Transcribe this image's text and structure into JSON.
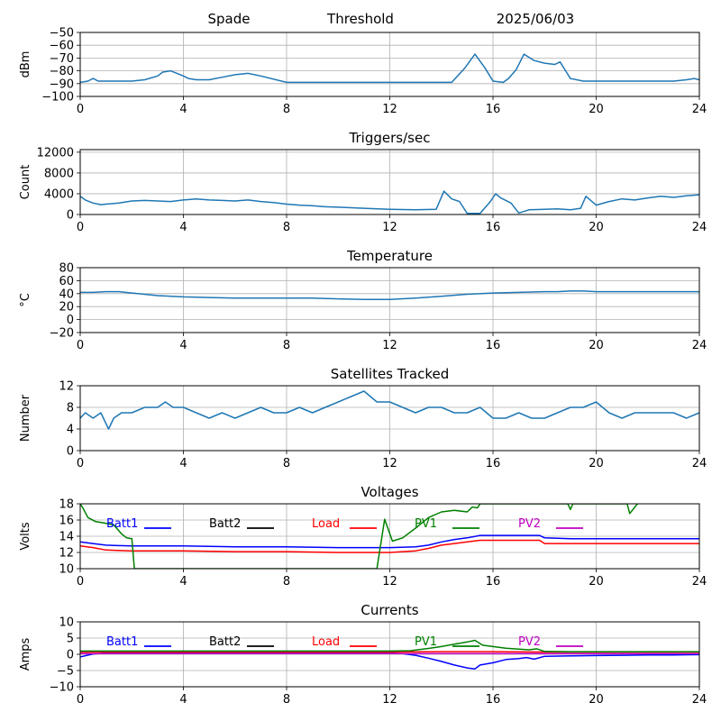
{
  "header": {
    "left": "Spade",
    "center": "Threshold",
    "right": "2025/06/03"
  },
  "colors": {
    "series": "#1f77b4",
    "grid": "#b0b0b0",
    "batt1": "#0000ff",
    "batt2": "#000000",
    "load": "#ff0000",
    "pv1": "#008000",
    "pv2": "#bf00bf"
  },
  "chart_data": [
    {
      "type": "line",
      "title": "",
      "xlabel": "",
      "ylabel": "dBm",
      "xlim": [
        0,
        24
      ],
      "ylim": [
        -100,
        -50
      ],
      "xticks": [
        0,
        4,
        8,
        12,
        16,
        20,
        24
      ],
      "yticks": [
        -100,
        -90,
        -80,
        -70,
        -60,
        -50
      ],
      "ytick_labels": [
        "−100",
        "−90",
        "−80",
        "−70",
        "−60",
        "−50"
      ],
      "grid": true,
      "series": [
        {
          "color": "#1f77b4",
          "x": [
            0,
            0.3,
            0.5,
            0.7,
            1.0,
            1.5,
            2.0,
            2.5,
            3.0,
            3.2,
            3.5,
            4.0,
            4.2,
            4.5,
            5.0,
            5.5,
            6.0,
            6.5,
            7.0,
            8.0,
            9.0,
            10.0,
            11.0,
            12.0,
            13.0,
            14.0,
            14.4,
            14.9,
            15.3,
            15.7,
            16.0,
            16.4,
            16.6,
            16.9,
            17.2,
            17.6,
            18.0,
            18.4,
            18.6,
            19.0,
            19.5,
            20.0,
            21.0,
            22.0,
            23.0,
            23.5,
            23.8,
            24.0
          ],
          "y": [
            -89,
            -88,
            -86,
            -88,
            -88,
            -88,
            -88,
            -87,
            -84,
            -81,
            -80,
            -84,
            -86,
            -87,
            -87,
            -85,
            -83,
            -82,
            -84,
            -89,
            -89,
            -89,
            -89,
            -89,
            -89,
            -89,
            -89,
            -78,
            -67,
            -78,
            -88,
            -89,
            -86,
            -79,
            -67,
            -72,
            -74,
            -75,
            -73,
            -86,
            -88,
            -88,
            -88,
            -88,
            -88,
            -87,
            -86,
            -87
          ]
        }
      ]
    },
    {
      "type": "line",
      "title": "Triggers/sec",
      "xlabel": "",
      "ylabel": "Count",
      "xlim": [
        0,
        24
      ],
      "ylim": [
        0,
        12500
      ],
      "xticks": [
        0,
        4,
        8,
        12,
        16,
        20,
        24
      ],
      "yticks": [
        0,
        4000,
        8000,
        12000
      ],
      "ytick_labels": [
        "0",
        "4000",
        "8000",
        "12000"
      ],
      "grid": true,
      "series": [
        {
          "color": "#1f77b4",
          "x": [
            0,
            0.2,
            0.5,
            0.8,
            1.0,
            1.5,
            2.0,
            2.5,
            3.0,
            3.5,
            4.0,
            4.5,
            5.0,
            5.5,
            6.0,
            6.5,
            7.0,
            7.5,
            8.0,
            8.5,
            9.0,
            9.5,
            10.0,
            11.0,
            12.0,
            13.0,
            13.8,
            14.1,
            14.4,
            14.7,
            15.0,
            15.5,
            15.9,
            16.1,
            16.3,
            16.7,
            17.0,
            17.4,
            18.0,
            18.5,
            19.0,
            19.4,
            19.6,
            20.0,
            20.5,
            21.0,
            21.5,
            22.0,
            22.5,
            23.0,
            23.5,
            24.0
          ],
          "y": [
            3500,
            2800,
            2200,
            1900,
            2000,
            2200,
            2600,
            2700,
            2600,
            2500,
            2800,
            3000,
            2800,
            2700,
            2600,
            2800,
            2500,
            2300,
            2000,
            1800,
            1700,
            1500,
            1400,
            1200,
            1000,
            900,
            1000,
            4500,
            3000,
            2500,
            200,
            200,
            2500,
            4000,
            3200,
            2200,
            300,
            900,
            1000,
            1100,
            900,
            1200,
            3500,
            1800,
            2500,
            3000,
            2800,
            3200,
            3500,
            3300,
            3600,
            3800
          ]
        }
      ]
    },
    {
      "type": "line",
      "title": "Temperature",
      "xlabel": "",
      "ylabel": "°C",
      "xlim": [
        0,
        24
      ],
      "ylim": [
        -20,
        80
      ],
      "xticks": [
        0,
        4,
        8,
        12,
        16,
        20,
        24
      ],
      "yticks": [
        -20,
        0,
        20,
        40,
        60,
        80
      ],
      "ytick_labels": [
        "−20",
        "0",
        "20",
        "40",
        "60",
        "80"
      ],
      "grid": true,
      "series": [
        {
          "color": "#1f77b4",
          "x": [
            0,
            0.5,
            1.0,
            1.5,
            2.0,
            3.0,
            4.0,
            5.0,
            6.0,
            7.0,
            8.0,
            9.0,
            10.0,
            11.0,
            12.0,
            13.0,
            14.0,
            15.0,
            16.0,
            17.0,
            18.0,
            18.5,
            19.0,
            19.5,
            20.0,
            21.0,
            22.0,
            23.0,
            24.0
          ],
          "y": [
            42,
            42,
            43,
            43,
            41,
            37,
            35,
            34,
            33,
            33,
            33,
            33,
            32,
            31,
            31,
            33,
            36,
            39,
            41,
            42,
            43,
            43,
            44,
            44,
            43,
            43,
            43,
            43,
            43
          ]
        }
      ]
    },
    {
      "type": "line",
      "title": "Satellites Tracked",
      "xlabel": "",
      "ylabel": "Number",
      "xlim": [
        0,
        24
      ],
      "ylim": [
        0,
        12
      ],
      "xticks": [
        0,
        4,
        8,
        12,
        16,
        20,
        24
      ],
      "yticks": [
        0,
        4,
        8,
        12
      ],
      "ytick_labels": [
        "0",
        "4",
        "8",
        "12"
      ],
      "grid": true,
      "series": [
        {
          "color": "#1f77b4",
          "x": [
            0,
            0.2,
            0.5,
            0.8,
            1.0,
            1.1,
            1.3,
            1.6,
            2.0,
            2.5,
            3.0,
            3.3,
            3.6,
            4.0,
            4.5,
            5.0,
            5.5,
            6.0,
            6.5,
            7.0,
            7.5,
            8.0,
            8.5,
            9.0,
            9.5,
            10.0,
            10.5,
            11.0,
            11.5,
            12.0,
            12.5,
            13.0,
            13.5,
            14.0,
            14.5,
            15.0,
            15.5,
            16.0,
            16.5,
            17.0,
            17.5,
            18.0,
            18.5,
            19.0,
            19.5,
            20.0,
            20.5,
            21.0,
            21.5,
            22.0,
            22.5,
            23.0,
            23.5,
            24.0
          ],
          "y": [
            6,
            7,
            6,
            7,
            5,
            4,
            6,
            7,
            7,
            8,
            8,
            9,
            8,
            8,
            7,
            6,
            7,
            6,
            7,
            8,
            7,
            7,
            8,
            7,
            8,
            9,
            10,
            11,
            9,
            9,
            8,
            7,
            8,
            8,
            7,
            7,
            8,
            6,
            6,
            7,
            6,
            6,
            7,
            8,
            8,
            9,
            7,
            6,
            7,
            7,
            7,
            7,
            6,
            7
          ]
        }
      ]
    },
    {
      "type": "line",
      "title": "Voltages",
      "xlabel": "",
      "ylabel": "Volts",
      "xlim": [
        0,
        24
      ],
      "ylim": [
        10,
        18
      ],
      "xticks": [
        0,
        4,
        8,
        12,
        16,
        20,
        24
      ],
      "yticks": [
        10,
        12,
        14,
        16,
        18
      ],
      "ytick_labels": [
        "10",
        "12",
        "14",
        "16",
        "18"
      ],
      "grid": true,
      "legend": "top",
      "series": [
        {
          "name": "Batt1",
          "color": "#0000ff",
          "x": [
            0,
            0.5,
            1.0,
            2.0,
            3.0,
            4.0,
            6.0,
            8.0,
            10.0,
            12.0,
            13.0,
            13.5,
            14.0,
            14.5,
            15.0,
            15.5,
            16.0,
            17.0,
            17.8,
            18.0,
            19.0,
            20.0,
            21.0,
            22.0,
            23.0,
            24.0
          ],
          "y": [
            13.3,
            13.1,
            12.9,
            12.8,
            12.8,
            12.8,
            12.7,
            12.7,
            12.6,
            12.6,
            12.7,
            12.9,
            13.3,
            13.6,
            13.8,
            14.1,
            14.1,
            14.1,
            14.1,
            13.8,
            13.7,
            13.7,
            13.7,
            13.7,
            13.7,
            13.7
          ]
        },
        {
          "name": "Batt2",
          "color": "#000000",
          "x": [],
          "y": []
        },
        {
          "name": "Load",
          "color": "#ff0000",
          "x": [
            0,
            0.5,
            1.0,
            2.0,
            3.0,
            4.0,
            6.0,
            8.0,
            10.0,
            12.0,
            13.0,
            13.5,
            14.0,
            14.5,
            15.0,
            15.5,
            16.0,
            17.0,
            17.8,
            18.0,
            19.0,
            20.0,
            21.0,
            22.0,
            23.0,
            24.0
          ],
          "y": [
            12.8,
            12.6,
            12.3,
            12.2,
            12.2,
            12.2,
            12.1,
            12.1,
            12.0,
            12.0,
            12.2,
            12.5,
            12.9,
            13.1,
            13.3,
            13.5,
            13.5,
            13.5,
            13.5,
            13.1,
            13.1,
            13.1,
            13.1,
            13.1,
            13.1,
            13.1
          ]
        },
        {
          "name": "PV1",
          "color": "#008000",
          "x": [
            0,
            0.1,
            0.3,
            0.6,
            1.0,
            1.3,
            1.6,
            1.8,
            2.0,
            2.1,
            11.5,
            11.8,
            12.1,
            12.5,
            13.0,
            13.5,
            14.0,
            14.5,
            15.0,
            15.2,
            15.4,
            15.5,
            18.9,
            19.0,
            19.1,
            21.2,
            21.3,
            21.6
          ],
          "y": [
            18,
            17.5,
            16.3,
            15.8,
            15.6,
            15.4,
            14.3,
            13.8,
            13.7,
            10.0,
            10.0,
            16.1,
            13.4,
            13.8,
            15.0,
            16.3,
            17.0,
            17.2,
            17.0,
            17.6,
            17.5,
            18,
            18,
            17.3,
            18,
            18,
            16.8,
            18
          ]
        },
        {
          "name": "PV2",
          "color": "#bf00bf",
          "x": [],
          "y": []
        }
      ]
    },
    {
      "type": "line",
      "title": "Currents",
      "xlabel": "",
      "ylabel": "Amps",
      "xlim": [
        0,
        24
      ],
      "ylim": [
        -10,
        10
      ],
      "xticks": [
        0,
        4,
        8,
        12,
        16,
        20,
        24
      ],
      "yticks": [
        -10,
        -5,
        0,
        5,
        10
      ],
      "ytick_labels": [
        "−10",
        "−5",
        "0",
        "5",
        "10"
      ],
      "grid": true,
      "legend": "top",
      "series": [
        {
          "name": "Batt1",
          "color": "#0000ff",
          "x": [
            0,
            0.5,
            1.0,
            2.0,
            4.0,
            6.0,
            8.0,
            10.0,
            12.0,
            12.5,
            13.0,
            13.5,
            14.0,
            14.5,
            15.0,
            15.3,
            15.5,
            16.0,
            16.5,
            17.0,
            17.3,
            17.6,
            18.0,
            19.0,
            20.0,
            21.0,
            22.0,
            23.0,
            24.0
          ],
          "y": [
            -0.8,
            0.1,
            0.4,
            0.5,
            0.5,
            0.5,
            0.5,
            0.4,
            0.4,
            0.2,
            -0.3,
            -1.2,
            -2.2,
            -3.3,
            -4.2,
            -4.5,
            -3.3,
            -2.6,
            -1.6,
            -1.3,
            -1.0,
            -1.5,
            -0.6,
            -0.5,
            -0.4,
            -0.3,
            -0.2,
            -0.2,
            -0.1
          ]
        },
        {
          "name": "Batt2",
          "color": "#000000",
          "x": [],
          "y": []
        },
        {
          "name": "Load",
          "color": "#ff0000",
          "x": [
            0,
            2,
            4,
            6,
            8,
            10,
            12,
            14,
            16,
            18,
            20,
            22,
            24
          ],
          "y": [
            0.7,
            0.7,
            0.7,
            0.7,
            0.7,
            0.7,
            0.7,
            0.8,
            0.8,
            0.7,
            0.7,
            0.7,
            0.7
          ]
        },
        {
          "name": "PV1",
          "color": "#008000",
          "x": [
            0,
            2,
            4,
            6,
            8,
            10,
            12,
            12.8,
            13.5,
            14.0,
            14.5,
            15.0,
            15.3,
            15.6,
            16.0,
            16.5,
            17.0,
            17.4,
            17.7,
            18.0,
            19.0,
            20.0,
            21.0,
            22.0,
            23.0,
            24.0
          ],
          "y": [
            1.0,
            1.0,
            1.0,
            1.0,
            1.0,
            1.0,
            1.0,
            1.1,
            1.8,
            2.4,
            3.1,
            3.8,
            4.3,
            2.8,
            2.4,
            1.9,
            1.6,
            1.4,
            1.7,
            0.9,
            0.8,
            0.8,
            0.8,
            0.8,
            0.8,
            0.8
          ]
        },
        {
          "name": "PV2",
          "color": "#bf00bf",
          "x": [
            0,
            4,
            8,
            12,
            16,
            20,
            24
          ],
          "y": [
            0.2,
            0.2,
            0.2,
            0.2,
            0.2,
            0.2,
            0.2
          ]
        }
      ]
    }
  ]
}
